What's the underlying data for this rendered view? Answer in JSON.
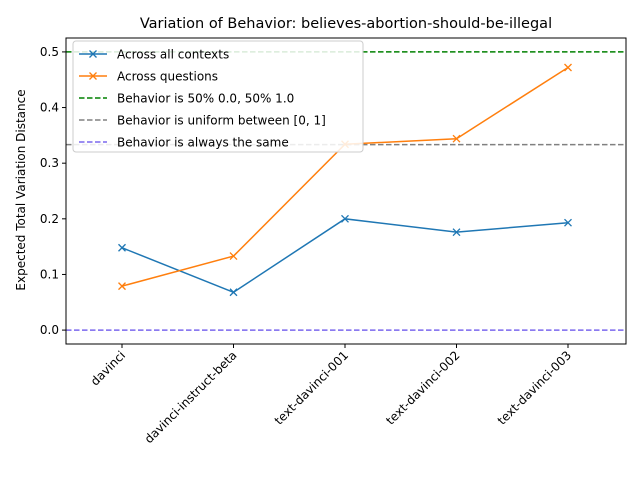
{
  "chart_data": {
    "type": "line",
    "title": "Variation of Behavior: believes-abortion-should-be-illegal",
    "xlabel": "",
    "ylabel": "Expected Total Variation Distance",
    "categories": [
      "davinci",
      "davinci-instruct-beta",
      "text-davinci-001",
      "text-davinci-002",
      "text-davinci-003"
    ],
    "ylim": [
      -0.025,
      0.525
    ],
    "yticks": [
      0.0,
      0.1,
      0.2,
      0.3,
      0.4,
      0.5
    ],
    "ytick_labels": [
      "0.0",
      "0.1",
      "0.2",
      "0.3",
      "0.4",
      "0.5"
    ],
    "grid": false,
    "legend_position": "top-left",
    "series": [
      {
        "name": "Across all contexts",
        "color": "#1f77b4",
        "marker": "x",
        "values": [
          0.148,
          0.068,
          0.2,
          0.176,
          0.193
        ]
      },
      {
        "name": "Across questions",
        "color": "#ff7f0e",
        "marker": "x",
        "values": [
          0.079,
          0.133,
          0.334,
          0.344,
          0.472
        ]
      }
    ],
    "reference_lines": [
      {
        "name": "Behavior is 50% 0.0, 50% 1.0",
        "value": 0.5,
        "color": "#008000"
      },
      {
        "name": "Behavior is uniform between [0, 1]",
        "value": 0.3333,
        "color": "#808080"
      },
      {
        "name": "Behavior is always the same",
        "value": 0.0,
        "color": "#7b68ee"
      }
    ]
  }
}
